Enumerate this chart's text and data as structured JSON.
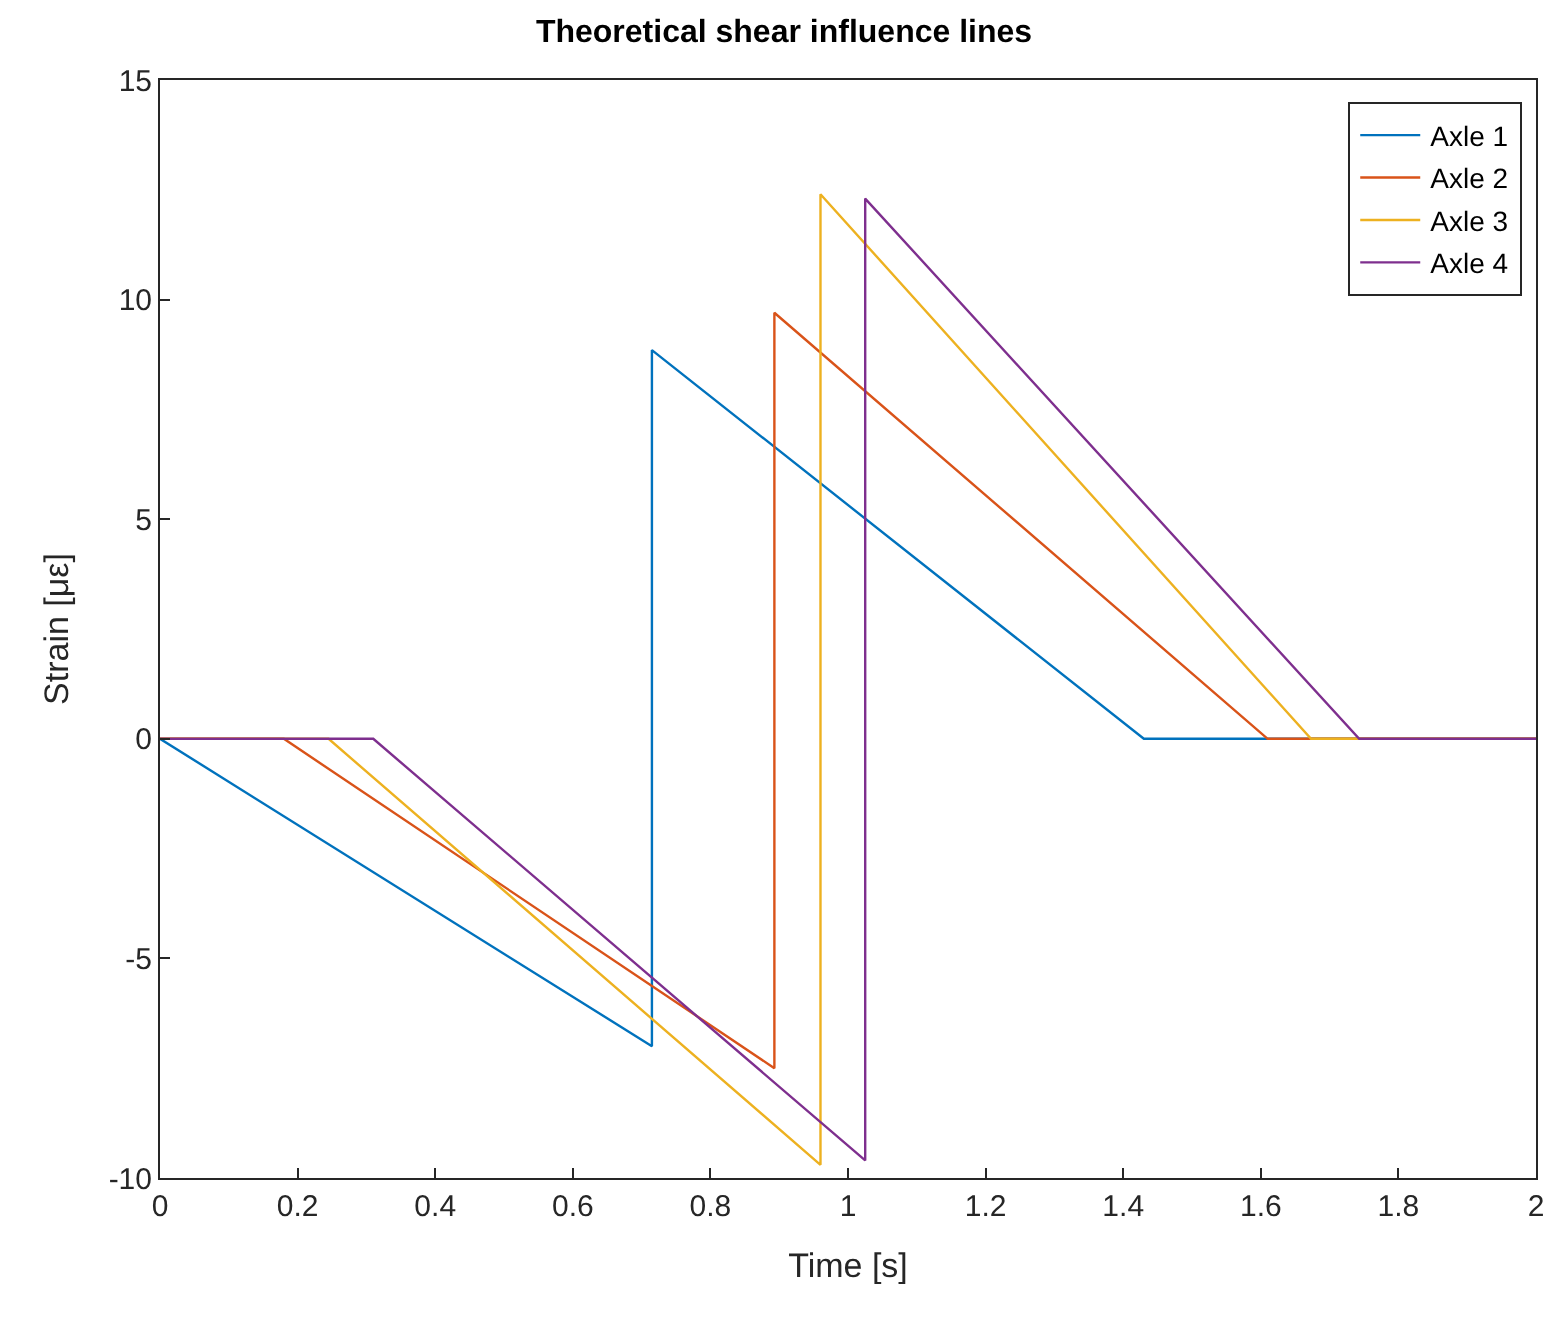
{
  "chart_data": {
    "type": "line",
    "title": "Theoretical shear influence lines",
    "xlabel": "Time [s]",
    "ylabel": "Strain [με]",
    "xlim": [
      0,
      2
    ],
    "xticks": [
      0,
      0.2,
      0.4,
      0.6,
      0.8,
      1,
      1.2,
      1.4,
      1.6,
      1.8,
      2
    ],
    "ylim": [
      -10,
      15
    ],
    "yticks": [
      -10,
      -5,
      0,
      5,
      10,
      15
    ],
    "series": [
      {
        "name": "Axle 1",
        "color": "#0072bd",
        "x": [
          0,
          0.715,
          0.715,
          1.43,
          2
        ],
        "values": [
          0,
          -7.0,
          8.85,
          0,
          0
        ]
      },
      {
        "name": "Axle 2",
        "color": "#d95319",
        "x": [
          0,
          0.18,
          0.893,
          0.893,
          1.61,
          2
        ],
        "values": [
          0,
          0,
          -7.5,
          9.7,
          0,
          0
        ]
      },
      {
        "name": "Axle 3",
        "color": "#edb120",
        "x": [
          0,
          0.245,
          0.96,
          0.96,
          1.673,
          2
        ],
        "values": [
          0,
          0,
          -9.7,
          12.4,
          0,
          0
        ]
      },
      {
        "name": "Axle 4",
        "color": "#7e2f8e",
        "x": [
          0,
          0.31,
          1.025,
          1.025,
          1.743,
          2
        ],
        "values": [
          0,
          0,
          -9.6,
          12.3,
          0,
          0
        ]
      }
    ],
    "legend": "top right",
    "marker": "none",
    "line_style": "solid"
  }
}
